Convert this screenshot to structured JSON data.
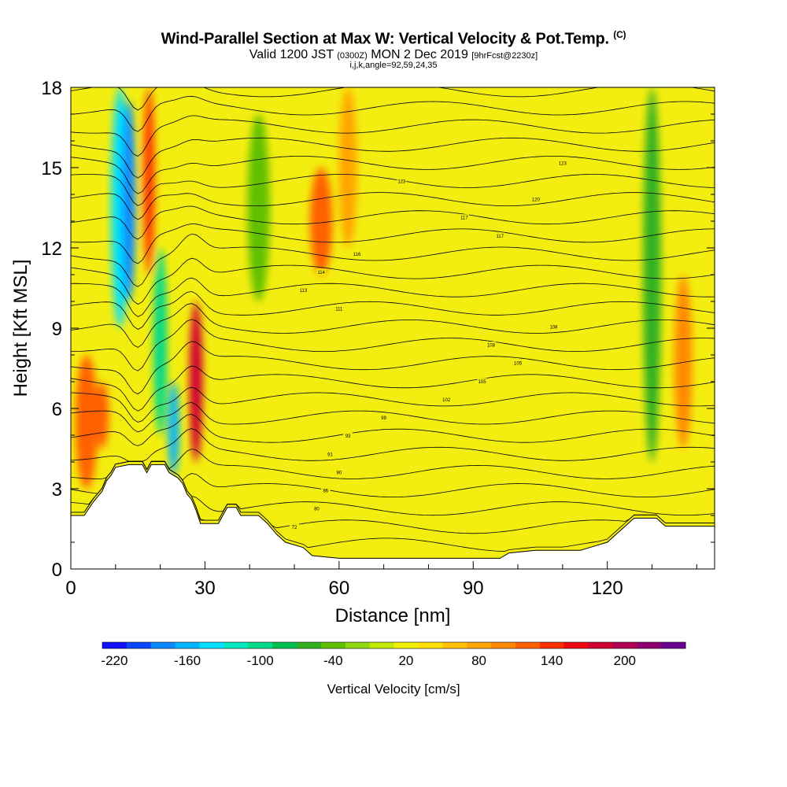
{
  "title": {
    "main": "Wind-Parallel Section at Max W: Vertical Velocity & Pot.Temp.",
    "copyright": "(C)",
    "valid_prefix": "Valid 1200 JST",
    "valid_utc": "(0300Z)",
    "valid_date": "MON 2 Dec 2019",
    "forecast": "[9hrFcst@2230z]",
    "ijk": "i,j,k,angle=92,59,24,35"
  },
  "chart_data": {
    "type": "heatmap",
    "xlabel": "Distance [nm]",
    "ylabel": "Height [Kft MSL]",
    "xlim": [
      0,
      144
    ],
    "ylim": [
      0,
      18
    ],
    "x_ticks": [
      "0",
      "30",
      "60",
      "90",
      "120"
    ],
    "x_tick_values": [
      0,
      30,
      60,
      90,
      120
    ],
    "y_ticks": [
      "0",
      "3",
      "6",
      "9",
      "12",
      "15",
      "18"
    ],
    "y_tick_values": [
      0,
      3,
      6,
      9,
      12,
      15,
      18
    ],
    "colorbar": {
      "label": "Vertical Velocity [cm/s]",
      "ticks": [
        "-220",
        "-160",
        "-100",
        "-40",
        "20",
        "80",
        "140",
        "200"
      ],
      "tick_values": [
        -220,
        -160,
        -100,
        -40,
        20,
        80,
        140,
        200
      ],
      "range": [
        -230,
        250
      ],
      "colors": [
        "#1010ff",
        "#0a48ff",
        "#0a88ff",
        "#00b4ff",
        "#00e0ff",
        "#00e8c0",
        "#00d88a",
        "#00c050",
        "#30b020",
        "#60c000",
        "#90d810",
        "#c0e800",
        "#f0f000",
        "#ffe000",
        "#ffc000",
        "#ffa400",
        "#ff8800",
        "#ff6000",
        "#ff3000",
        "#ee0a10",
        "#d00030",
        "#b00050",
        "#900070",
        "#6a0090"
      ]
    },
    "terrain_kft": [
      [
        0,
        2.0
      ],
      [
        3,
        2.0
      ],
      [
        5,
        2.5
      ],
      [
        7,
        2.9
      ],
      [
        8,
        3.3
      ],
      [
        9,
        3.5
      ],
      [
        10,
        3.8
      ],
      [
        13,
        3.9
      ],
      [
        16,
        3.9
      ],
      [
        17,
        3.6
      ],
      [
        18,
        3.9
      ],
      [
        21,
        3.9
      ],
      [
        22,
        3.6
      ],
      [
        24,
        3.4
      ],
      [
        25,
        3.2
      ],
      [
        26,
        2.8
      ],
      [
        27,
        2.6
      ],
      [
        28,
        2.2
      ],
      [
        29,
        1.7
      ],
      [
        33,
        1.7
      ],
      [
        34,
        2.0
      ],
      [
        35,
        2.3
      ],
      [
        37,
        2.3
      ],
      [
        38,
        2.0
      ],
      [
        42,
        2.0
      ],
      [
        44,
        1.7
      ],
      [
        46,
        1.3
      ],
      [
        48,
        1.0
      ],
      [
        52,
        0.8
      ],
      [
        54,
        0.5
      ],
      [
        60,
        0.4
      ],
      [
        70,
        0.4
      ],
      [
        80,
        0.4
      ],
      [
        90,
        0.4
      ],
      [
        96,
        0.4
      ],
      [
        98,
        0.6
      ],
      [
        104,
        0.7
      ],
      [
        114,
        0.7
      ],
      [
        116,
        0.8
      ],
      [
        120,
        1.0
      ],
      [
        122,
        1.3
      ],
      [
        124,
        1.6
      ],
      [
        126,
        1.9
      ],
      [
        131,
        1.9
      ],
      [
        133,
        1.6
      ],
      [
        137,
        1.6
      ],
      [
        144,
        1.6
      ]
    ],
    "vertical_velocity_bands": [
      {
        "x": 3.5,
        "width": 5,
        "w": 110,
        "ymin": 3,
        "ymax": 8
      },
      {
        "x": 7,
        "width": 3,
        "w": 120,
        "ymin": 4.5,
        "ymax": 7
      },
      {
        "x": 11,
        "width": 4,
        "w": -150,
        "ymin": 9,
        "ymax": 18
      },
      {
        "x": 13,
        "width": 3,
        "w": -180,
        "ymin": 10,
        "ymax": 17.5
      },
      {
        "x": 17.5,
        "width": 2.5,
        "w": 140,
        "ymin": 11,
        "ymax": 18
      },
      {
        "x": 20,
        "width": 3,
        "w": -110,
        "ymin": 5,
        "ymax": 12
      },
      {
        "x": 23,
        "width": 2.5,
        "w": -160,
        "ymin": 3.5,
        "ymax": 7
      },
      {
        "x": 28,
        "width": 3,
        "w": 180,
        "ymin": 4,
        "ymax": 10
      },
      {
        "x": 42,
        "width": 5,
        "w": -40,
        "ymin": 10,
        "ymax": 17
      },
      {
        "x": 56,
        "width": 5,
        "w": 110,
        "ymin": 11,
        "ymax": 15
      },
      {
        "x": 62,
        "width": 4,
        "w": 70,
        "ymin": 12,
        "ymax": 18
      },
      {
        "x": 130,
        "width": 4,
        "w": -70,
        "ymin": 4,
        "ymax": 18
      },
      {
        "x": 137,
        "width": 4,
        "w": 90,
        "ymin": 4.5,
        "ymax": 11
      }
    ],
    "theta_contour_labels": [
      "72",
      "80",
      "86",
      "90",
      "91",
      "93",
      "99",
      "102",
      "105",
      "105",
      "108",
      "108",
      "111",
      "113",
      "114",
      "116",
      "117",
      "117",
      "120",
      "123",
      "123"
    ]
  }
}
